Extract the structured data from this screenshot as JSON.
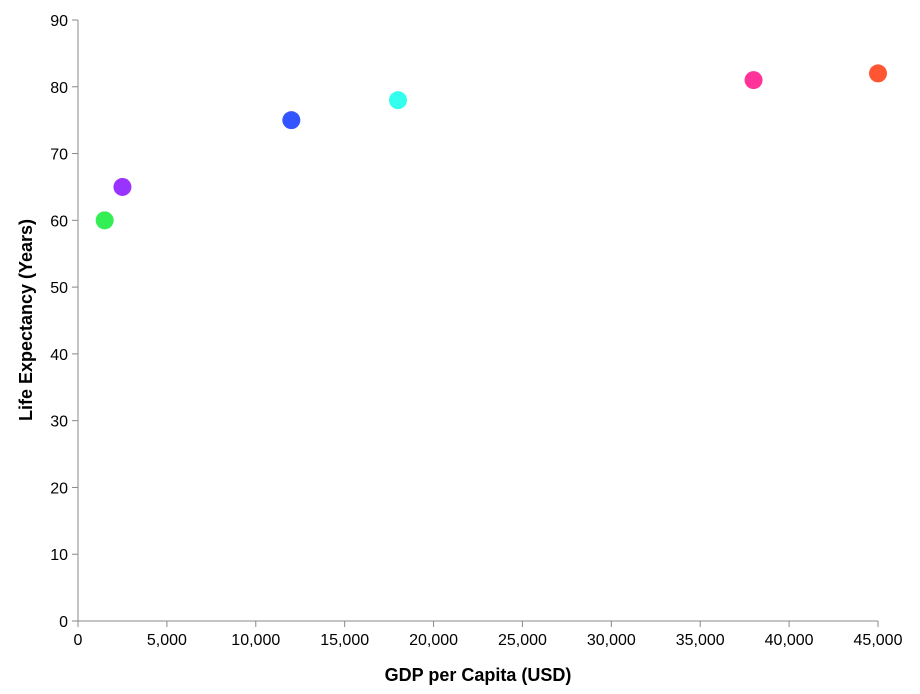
{
  "chart_data": {
    "type": "scatter",
    "title": "",
    "xlabel": "GDP per Capita (USD)",
    "ylabel": "Life Expectancy (Years)",
    "xlim": [
      0,
      45000
    ],
    "ylim": [
      0,
      90
    ],
    "x_ticks": [
      0,
      5000,
      10000,
      15000,
      20000,
      25000,
      30000,
      35000,
      40000,
      45000
    ],
    "x_tick_labels": [
      "0",
      "5,000",
      "10,000",
      "15,000",
      "20,000",
      "25,000",
      "30,000",
      "35,000",
      "40,000",
      "45,000"
    ],
    "y_ticks": [
      0,
      10,
      20,
      30,
      40,
      50,
      60,
      70,
      80,
      90
    ],
    "y_tick_labels": [
      "0",
      "10",
      "20",
      "30",
      "40",
      "50",
      "60",
      "70",
      "80",
      "90"
    ],
    "grid": false,
    "legend": "none",
    "points": [
      {
        "x": 1500,
        "y": 60,
        "color": "#33ee55"
      },
      {
        "x": 2500,
        "y": 65,
        "color": "#9933ff"
      },
      {
        "x": 12000,
        "y": 75,
        "color": "#3355ff"
      },
      {
        "x": 18000,
        "y": 78,
        "color": "#33ffee"
      },
      {
        "x": 38000,
        "y": 81,
        "color": "#ff3399"
      },
      {
        "x": 45000,
        "y": 82,
        "color": "#ff5533"
      }
    ]
  }
}
